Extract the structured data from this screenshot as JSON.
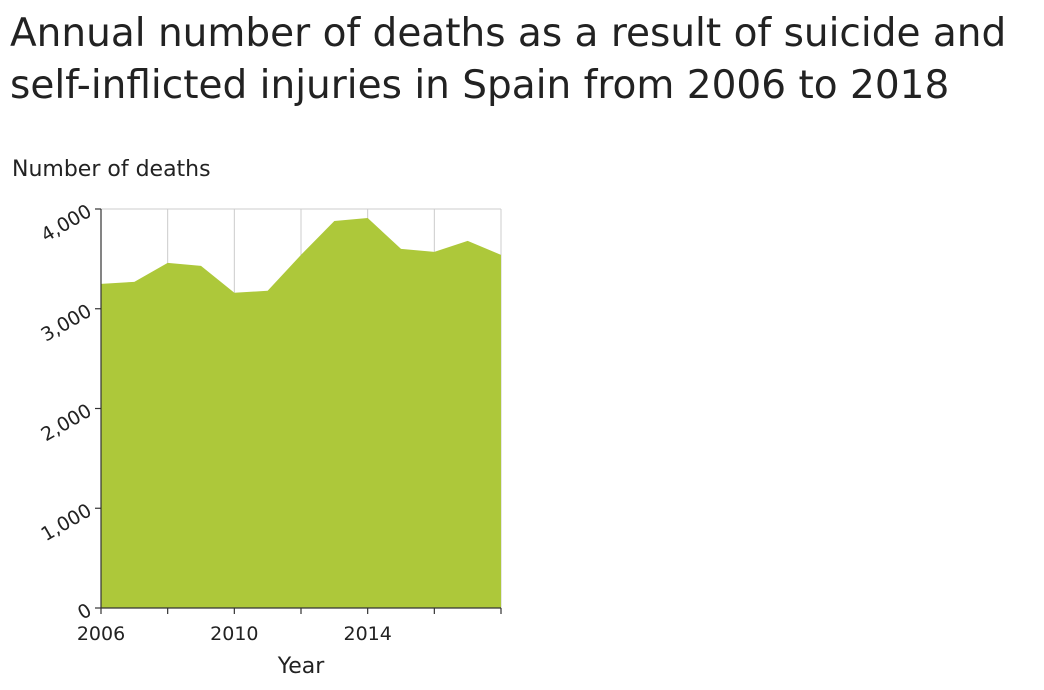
{
  "chart_data": {
    "type": "area",
    "title": "Annual number of deaths as a result of suicide and self-inflicted injuries in Spain from 2006 to 2018",
    "ylabel": "Number of deaths",
    "xlabel": "Year",
    "x": [
      2006,
      2007,
      2008,
      2009,
      2010,
      2011,
      2012,
      2013,
      2014,
      2015,
      2016,
      2017,
      2018
    ],
    "values": [
      3250,
      3270,
      3460,
      3430,
      3160,
      3180,
      3540,
      3880,
      3910,
      3600,
      3570,
      3680,
      3540
    ],
    "xlim": [
      2006,
      2018
    ],
    "ylim": [
      0,
      4000
    ],
    "x_ticks": [
      2006,
      2010,
      2014
    ],
    "x_tick_marks": [
      2006,
      2008,
      2010,
      2012,
      2014,
      2016,
      2018
    ],
    "y_ticks": [
      0,
      1000,
      2000,
      3000,
      4000
    ],
    "y_tick_labels": [
      "0",
      "1,000",
      "2,000",
      "3,000",
      "4,000"
    ],
    "x_tick_labels": [
      "2006",
      "2010",
      "2014"
    ],
    "grid": true,
    "fill_color": "#adc83a",
    "grid_color": "#cccccc",
    "axis_color": "#333333"
  }
}
